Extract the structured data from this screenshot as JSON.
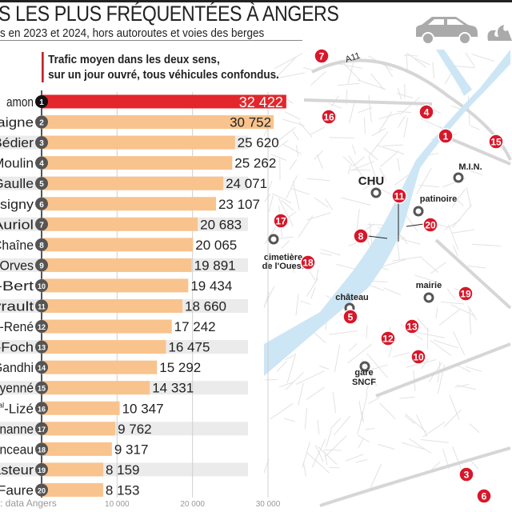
{
  "header": {
    "title": "S LES PLUS FRÉQUENTÉES À ANGERS",
    "subtitle": "s en 2023 et 2024, hors autoroutes et voies des berges",
    "note_line1": "Trafic moyen dans les deux sens,",
    "note_line2": "sur un jour ouvré, tous véhicules confondus.",
    "icon": "car-icon"
  },
  "source": ": data Angers",
  "colors": {
    "top": "#e3262b",
    "bar": "#f9c38d",
    "band": "#ebebeb",
    "river": "#cde6f5",
    "marker": "#d7182a",
    "rank": "#555555"
  },
  "chart_data": {
    "type": "bar",
    "orientation": "horizontal",
    "xlim": [
      0,
      32422
    ],
    "xticks": [
      "10 000",
      "20 000",
      "30 000"
    ],
    "xtick_values": [
      10000,
      20000,
      30000
    ],
    "grid": true,
    "categories": [
      "amon",
      "taigne",
      "Bédier",
      "Moulin",
      "Gaulle",
      "ssigny",
      "Auriol",
      "Chaîne",
      "Orves",
      "l-Bert",
      "yrault",
      "-René",
      "l-Foch",
      "Gandhi",
      "yenné",
      "al-Lizé",
      "nanne",
      "nceau",
      "asteur",
      "-Faure"
    ],
    "ranks": [
      "1",
      "2",
      "3",
      "4",
      "5",
      "6",
      "7",
      "8",
      "9",
      "10",
      "11",
      "12",
      "13",
      "14",
      "15",
      "16",
      "17",
      "18",
      "19",
      "20"
    ],
    "values": [
      32422,
      30752,
      25620,
      25262,
      24071,
      23107,
      20683,
      20065,
      19891,
      19434,
      18660,
      17242,
      16475,
      15292,
      14331,
      10347,
      9762,
      9317,
      8159,
      8153
    ],
    "value_labels": [
      "32 422",
      "30 752",
      "25 620",
      "25 262",
      "24 071",
      "23 107",
      "20 683",
      "20 065",
      "19 891",
      "19 434",
      "18 660",
      "17 242",
      "16 475",
      "15 292",
      "14 331",
      "10 347",
      "9 762",
      "9 317",
      "8 159",
      "8 153"
    ]
  },
  "map": {
    "markers": [
      "7",
      "16",
      "4",
      "1",
      "15",
      "11",
      "20",
      "8",
      "17",
      "18",
      "5",
      "19",
      "13",
      "12",
      "10",
      "3",
      "6"
    ],
    "places": [
      "CHU",
      "patinoire",
      "M.I.N.",
      "cimetière",
      "de l'Ouest",
      "château",
      "mairie",
      "gare",
      "SNCF"
    ],
    "road": "A11"
  }
}
